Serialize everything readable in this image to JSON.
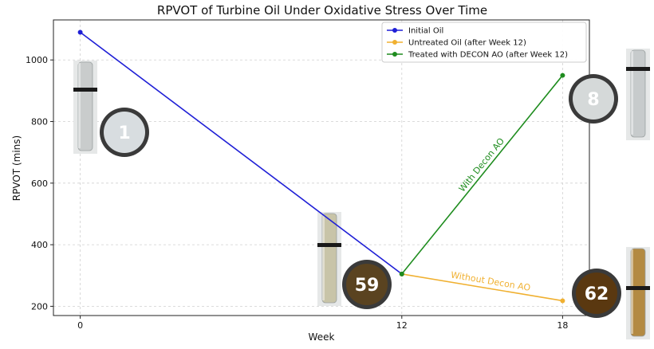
{
  "chart_data": {
    "type": "line",
    "title": "RPVOT of Turbine Oil Under Oxidative Stress Over Time",
    "xlabel": "Week",
    "ylabel": "RPVOT (mins)",
    "xlim": [
      -1,
      19
    ],
    "ylim": [
      170,
      1130
    ],
    "xticks": [
      0,
      12,
      18
    ],
    "yticks": [
      200,
      400,
      600,
      800,
      1000
    ],
    "grid": true,
    "legend_position": "top-right",
    "series": [
      {
        "name": "Initial Oil",
        "color": "#1f1fd6",
        "x": [
          0,
          12
        ],
        "y": [
          1090,
          305
        ]
      },
      {
        "name": "Untreated Oil (after Week 12)",
        "color": "#f0b030",
        "x": [
          12,
          18
        ],
        "y": [
          305,
          218
        ]
      },
      {
        "name": "Treated with DECON AO (after Week 12)",
        "color": "#1e8c1e",
        "x": [
          12,
          18
        ],
        "y": [
          305,
          950
        ]
      }
    ],
    "annotations": [
      {
        "text": "With Decon AO",
        "color": "#1e8c1e"
      },
      {
        "text": "Without Decon AO",
        "color": "#f0b030"
      }
    ],
    "badges": [
      {
        "label": "1",
        "fill": "#d8dde0",
        "text_color": "#ffffff",
        "tube_color": "#c9cccc"
      },
      {
        "label": "59",
        "fill": "#5a4320",
        "text_color": "#ffffff",
        "tube_color": "#c8c4a8"
      },
      {
        "label": "8",
        "fill": "#d5d9d9",
        "text_color": "#ffffff",
        "tube_color": "#c7cbcc"
      },
      {
        "label": "62",
        "fill": "#5a3810",
        "text_color": "#ffffff",
        "tube_color": "#b38a42"
      }
    ]
  }
}
